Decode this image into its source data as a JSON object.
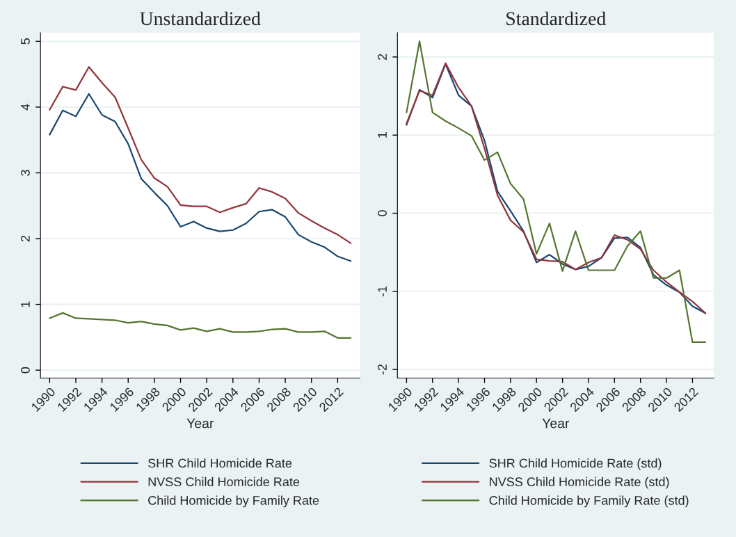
{
  "chart_data": [
    {
      "type": "line",
      "title": "Unstandardized",
      "xlabel": "Year",
      "x": [
        1990,
        1991,
        1992,
        1993,
        1994,
        1995,
        1996,
        1997,
        1998,
        1999,
        2000,
        2001,
        2002,
        2003,
        2004,
        2005,
        2006,
        2007,
        2008,
        2009,
        2010,
        2011,
        2012,
        2013
      ],
      "series": [
        {
          "name": "SHR Child Homicide Rate",
          "color": "#1a476f",
          "values": [
            3.58,
            3.95,
            3.86,
            4.2,
            3.88,
            3.78,
            3.44,
            2.91,
            2.7,
            2.5,
            2.18,
            2.26,
            2.16,
            2.11,
            2.13,
            2.23,
            2.41,
            2.44,
            2.33,
            2.06,
            1.95,
            1.87,
            1.73,
            1.66
          ]
        },
        {
          "name": "NVSS Child Homicide Rate",
          "color": "#90353b",
          "values": [
            3.96,
            4.31,
            4.26,
            4.61,
            4.37,
            4.15,
            3.68,
            3.2,
            2.92,
            2.79,
            2.51,
            2.49,
            2.49,
            2.4,
            2.47,
            2.53,
            2.77,
            2.71,
            2.61,
            2.39,
            2.27,
            2.16,
            2.06,
            1.93
          ]
        },
        {
          "name": "Child Homicide by Family Rate",
          "color": "#55752f",
          "values": [
            0.79,
            0.87,
            0.79,
            0.78,
            0.77,
            0.76,
            0.72,
            0.74,
            0.7,
            0.68,
            0.61,
            0.64,
            0.59,
            0.63,
            0.58,
            0.58,
            0.59,
            0.62,
            0.63,
            0.58,
            0.58,
            0.59,
            0.49,
            0.49
          ]
        }
      ],
      "xlim": [
        1989.3,
        2013.7
      ],
      "ylim": [
        -0.12,
        5.13
      ],
      "xticks": [
        1990,
        1992,
        1994,
        1996,
        1998,
        2000,
        2002,
        2004,
        2006,
        2008,
        2010,
        2012
      ],
      "yticks": [
        0,
        1,
        2,
        3,
        4,
        5
      ],
      "grid": "y",
      "legend": "bottom"
    },
    {
      "type": "line",
      "title": "Standardized",
      "xlabel": "Year",
      "x": [
        1990,
        1991,
        1992,
        1993,
        1994,
        1995,
        1996,
        1997,
        1998,
        1999,
        2000,
        2001,
        2002,
        2003,
        2004,
        2005,
        2006,
        2007,
        2008,
        2009,
        2010,
        2011,
        2012,
        2013
      ],
      "series": [
        {
          "name": "SHR Child Homicide Rate (std)",
          "color": "#1a476f",
          "values": [
            1.13,
            1.58,
            1.48,
            1.91,
            1.51,
            1.37,
            0.93,
            0.28,
            0.03,
            -0.23,
            -0.63,
            -0.53,
            -0.65,
            -0.72,
            -0.68,
            -0.57,
            -0.32,
            -0.31,
            -0.44,
            -0.79,
            -0.92,
            -1.01,
            -1.19,
            -1.28
          ]
        },
        {
          "name": "NVSS Child Homicide Rate (std)",
          "color": "#90353b",
          "values": [
            1.15,
            1.57,
            1.51,
            1.92,
            1.61,
            1.37,
            0.83,
            0.23,
            -0.09,
            -0.24,
            -0.59,
            -0.61,
            -0.62,
            -0.72,
            -0.63,
            -0.57,
            -0.28,
            -0.34,
            -0.46,
            -0.73,
            -0.88,
            -1.01,
            -1.13,
            -1.28
          ]
        },
        {
          "name": "Child Homicide by Family Rate (std)",
          "color": "#55752f",
          "values": [
            1.29,
            2.2,
            1.29,
            1.18,
            1.09,
            0.99,
            0.68,
            0.78,
            0.38,
            0.18,
            -0.52,
            -0.13,
            -0.74,
            -0.23,
            -0.73,
            -0.73,
            -0.73,
            -0.42,
            -0.23,
            -0.83,
            -0.83,
            -0.73,
            -1.65,
            -1.65
          ]
        }
      ],
      "xlim": [
        1989.3,
        2013.65
      ],
      "ylim": [
        -2.11,
        2.31
      ],
      "xticks": [
        1990,
        1992,
        1994,
        1996,
        1998,
        2000,
        2002,
        2004,
        2006,
        2008,
        2010,
        2012
      ],
      "yticks": [
        -2,
        -1,
        0,
        1,
        2
      ],
      "grid": "y",
      "legend": "bottom"
    }
  ]
}
